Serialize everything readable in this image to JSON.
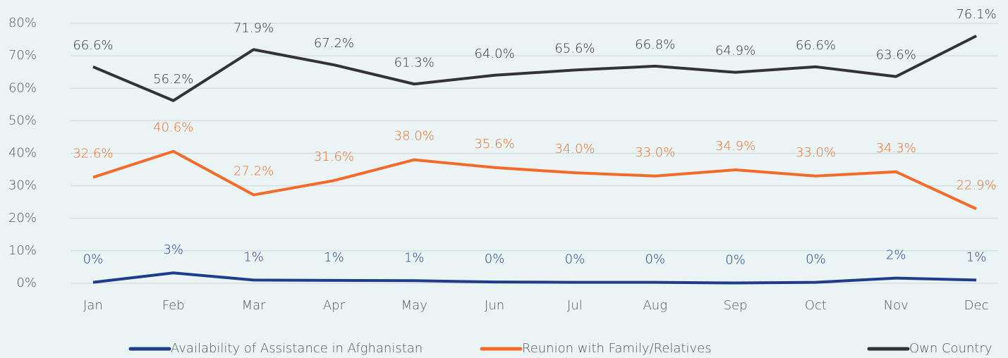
{
  "chart_data": {
    "type": "line",
    "categories": [
      "Jan",
      "Feb",
      "Mar",
      "Apr",
      "May",
      "Jun",
      "Jul",
      "Aug",
      "Sep",
      "Oct",
      "Nov",
      "Dec"
    ],
    "series": [
      {
        "name": "Availability of Assistance in Afghanistan",
        "color": "#1f3b8c",
        "values": [
          0.3,
          3.2,
          1.0,
          0.9,
          0.8,
          0.4,
          0.3,
          0.3,
          0.1,
          0.3,
          1.6,
          1.0
        ],
        "value_labels": [
          "0%",
          "3%",
          "1%",
          "1%",
          "1%",
          "0%",
          "0%",
          "0%",
          "0%",
          "0%",
          "2%",
          "1%"
        ]
      },
      {
        "name": "Reunion with Family/Relatives",
        "color": "#f26b2a",
        "values": [
          32.6,
          40.6,
          27.2,
          31.6,
          38.0,
          35.6,
          34.0,
          33.0,
          34.9,
          33.0,
          34.3,
          22.9
        ],
        "value_labels": [
          "32.6%",
          "40.6%",
          "27.2%",
          "31.6%",
          "38.0%",
          "35.6%",
          "34.0%",
          "33.0%",
          "34.9%",
          "33.0%",
          "34.3%",
          "22.9%"
        ]
      },
      {
        "name": "Own Country",
        "color": "#333333",
        "values": [
          66.6,
          56.2,
          71.9,
          67.2,
          61.3,
          64.0,
          65.6,
          66.8,
          64.9,
          66.6,
          63.6,
          76.1
        ],
        "value_labels": [
          "66.6%",
          "56.2%",
          "71.9%",
          "67.2%",
          "61.3%",
          "64.0%",
          "65.6%",
          "66.8%",
          "64.9%",
          "66.6%",
          "63.6%",
          "76.1%"
        ]
      }
    ],
    "ylim": [
      0,
      80
    ],
    "yticks": [
      {
        "value": 0,
        "label": "0%"
      },
      {
        "value": 10,
        "label": "10%"
      },
      {
        "value": 20,
        "label": "20%"
      },
      {
        "value": 30,
        "label": "30%"
      },
      {
        "value": 40,
        "label": "40%"
      },
      {
        "value": 50,
        "label": "50%"
      },
      {
        "value": 60,
        "label": "60%"
      },
      {
        "value": 70,
        "label": "70%"
      },
      {
        "value": 80,
        "label": "80%"
      }
    ],
    "grid": true,
    "legend": "bottom"
  }
}
